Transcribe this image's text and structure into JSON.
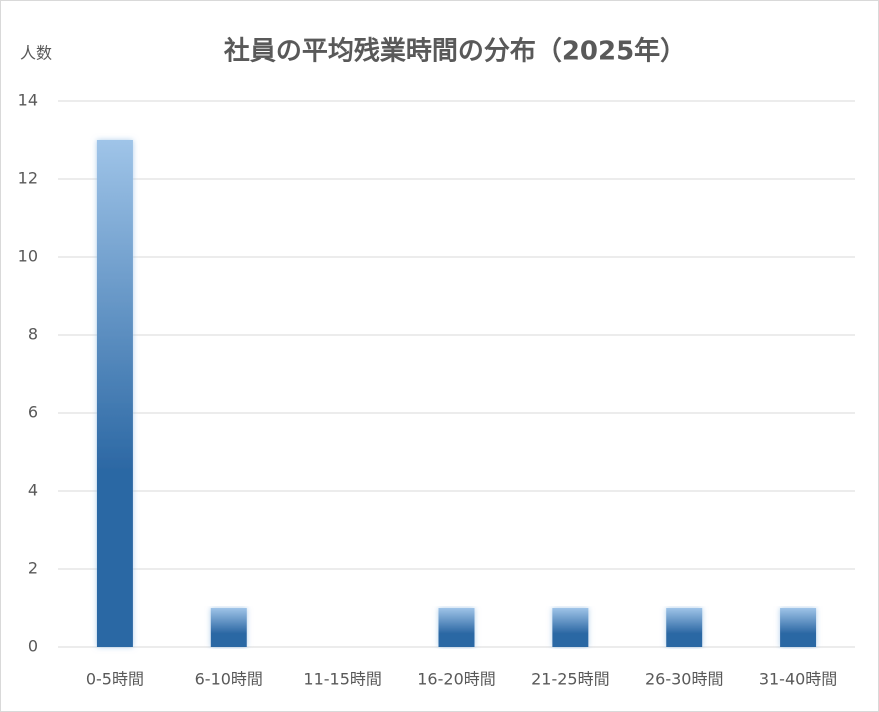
{
  "chart_data": {
    "type": "bar",
    "title": "社員の平均残業時間の分布（2025年）",
    "y_label": "人数",
    "categories": [
      "0-5時間",
      "6-10時間",
      "11-15時間",
      "16-20時間",
      "21-25時間",
      "26-30時間",
      "31-40時間"
    ],
    "values": [
      13,
      1,
      0,
      1,
      1,
      1,
      1
    ],
    "gradient": [
      "#9fc4e8",
      "#2c68a4"
    ],
    "ylim": [
      0,
      14
    ],
    "yticks": [
      0,
      2,
      4,
      6,
      8,
      10,
      12,
      14
    ],
    "grid": true
  }
}
